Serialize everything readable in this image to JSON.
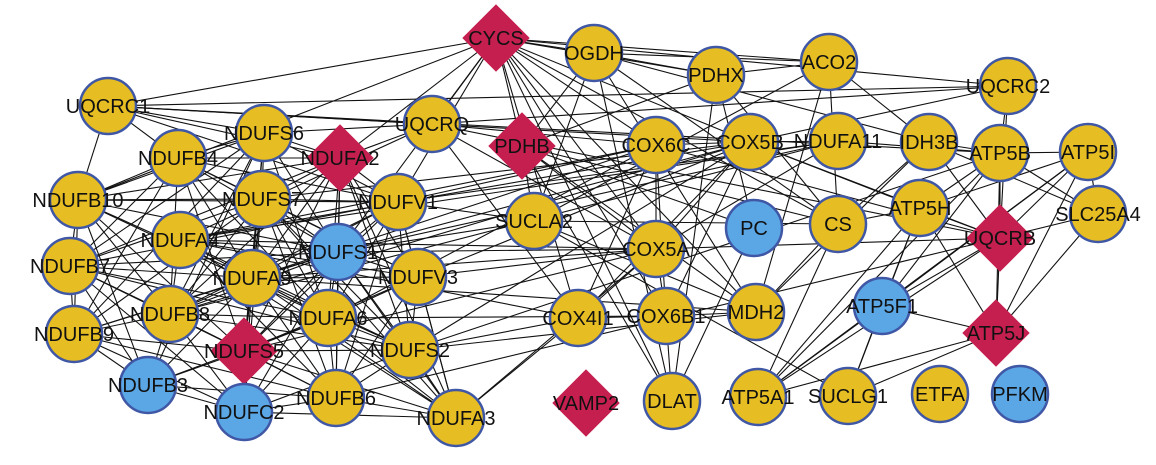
{
  "colors": {
    "gold": "#e6bd23",
    "blue": "#5ba6e5",
    "crimson": "#c51f50",
    "outline": "#3f57a5",
    "edge": "#111111"
  },
  "nodes": [
    {
      "id": "CYCS",
      "label": "CYCS",
      "shape": "diamond",
      "color": "crimson"
    },
    {
      "id": "OGDH",
      "label": "OGDH",
      "shape": "circle",
      "color": "gold"
    },
    {
      "id": "PDHX",
      "label": "PDHX",
      "shape": "circle",
      "color": "gold"
    },
    {
      "id": "ACO2",
      "label": "ACO2",
      "shape": "circle",
      "color": "gold"
    },
    {
      "id": "UQCRC2",
      "label": "UQCRC2",
      "shape": "circle",
      "color": "gold"
    },
    {
      "id": "UQCRC1",
      "label": "UQCRC1",
      "shape": "circle",
      "color": "gold"
    },
    {
      "id": "UQCRQ",
      "label": "UQCRQ",
      "shape": "circle",
      "color": "gold"
    },
    {
      "id": "NDUFS6",
      "label": "NDUFS6",
      "shape": "circle",
      "color": "gold"
    },
    {
      "id": "PDHB",
      "label": "PDHB",
      "shape": "diamond",
      "color": "crimson"
    },
    {
      "id": "COX6C",
      "label": "COX6C",
      "shape": "circle",
      "color": "gold"
    },
    {
      "id": "COX5B",
      "label": "COX5B",
      "shape": "circle",
      "color": "gold"
    },
    {
      "id": "NDUFA11",
      "label": "NDUFA11",
      "shape": "circle",
      "color": "gold"
    },
    {
      "id": "IDH3B",
      "label": "IDH3B",
      "shape": "circle",
      "color": "gold"
    },
    {
      "id": "ATP5B",
      "label": "ATP5B",
      "shape": "circle",
      "color": "gold"
    },
    {
      "id": "ATP5I",
      "label": "ATP5I",
      "shape": "circle",
      "color": "gold"
    },
    {
      "id": "NDUFB4",
      "label": "NDUFB4",
      "shape": "circle",
      "color": "gold"
    },
    {
      "id": "NDUFA2",
      "label": "NDUFA2",
      "shape": "diamond",
      "color": "crimson"
    },
    {
      "id": "NDUFB10",
      "label": "NDUFB10",
      "shape": "circle",
      "color": "gold"
    },
    {
      "id": "NDUFS7",
      "label": "NDUFS7",
      "shape": "circle",
      "color": "gold"
    },
    {
      "id": "NDUFV1",
      "label": "NDUFV1",
      "shape": "circle",
      "color": "gold"
    },
    {
      "id": "SUCLA2",
      "label": "SUCLA2",
      "shape": "circle",
      "color": "gold"
    },
    {
      "id": "PC",
      "label": "PC",
      "shape": "circle",
      "color": "blue"
    },
    {
      "id": "CS",
      "label": "CS",
      "shape": "circle",
      "color": "gold"
    },
    {
      "id": "ATP5H",
      "label": "ATP5H",
      "shape": "circle",
      "color": "gold"
    },
    {
      "id": "UQCRB",
      "label": "UQCRB",
      "shape": "diamond",
      "color": "crimson"
    },
    {
      "id": "SLC25A4",
      "label": "SLC25A4",
      "shape": "circle",
      "color": "gold"
    },
    {
      "id": "NDUFA4",
      "label": "NDUFA4",
      "shape": "circle",
      "color": "gold"
    },
    {
      "id": "NDUFS1",
      "label": "NDUFS1",
      "shape": "circle",
      "color": "blue"
    },
    {
      "id": "COX5A",
      "label": "COX5A",
      "shape": "circle",
      "color": "gold"
    },
    {
      "id": "NDUFB7",
      "label": "NDUFB7",
      "shape": "circle",
      "color": "gold"
    },
    {
      "id": "NDUFA9",
      "label": "NDUFA9",
      "shape": "circle",
      "color": "gold"
    },
    {
      "id": "NDUFV3",
      "label": "NDUFV3",
      "shape": "circle",
      "color": "gold"
    },
    {
      "id": "NDUFB8",
      "label": "NDUFB8",
      "shape": "circle",
      "color": "gold"
    },
    {
      "id": "NDUFA6",
      "label": "NDUFA6",
      "shape": "circle",
      "color": "gold"
    },
    {
      "id": "COX4I1",
      "label": "COX4I1",
      "shape": "circle",
      "color": "gold"
    },
    {
      "id": "COX6B1",
      "label": "COX6B1",
      "shape": "circle",
      "color": "gold"
    },
    {
      "id": "MDH2",
      "label": "MDH2",
      "shape": "circle",
      "color": "gold"
    },
    {
      "id": "ATP5F1",
      "label": "ATP5F1",
      "shape": "circle",
      "color": "blue"
    },
    {
      "id": "ATP5J",
      "label": "ATP5J",
      "shape": "diamond",
      "color": "crimson"
    },
    {
      "id": "NDUFB9",
      "label": "NDUFB9",
      "shape": "circle",
      "color": "gold"
    },
    {
      "id": "NDUFS5",
      "label": "NDUFS5",
      "shape": "diamond",
      "color": "crimson"
    },
    {
      "id": "NDUFS2",
      "label": "NDUFS2",
      "shape": "circle",
      "color": "gold"
    },
    {
      "id": "NDUFB3",
      "label": "NDUFB3",
      "shape": "circle",
      "color": "blue"
    },
    {
      "id": "NDUFB6",
      "label": "NDUFB6",
      "shape": "circle",
      "color": "gold"
    },
    {
      "id": "NDUFC2",
      "label": "NDUFC2",
      "shape": "circle",
      "color": "blue"
    },
    {
      "id": "NDUFA3",
      "label": "NDUFA3",
      "shape": "circle",
      "color": "gold"
    },
    {
      "id": "VAMP2",
      "label": "VAMP2",
      "shape": "diamond",
      "color": "crimson"
    },
    {
      "id": "DLAT",
      "label": "DLAT",
      "shape": "circle",
      "color": "gold"
    },
    {
      "id": "ATP5A1",
      "label": "ATP5A1",
      "shape": "circle",
      "color": "gold"
    },
    {
      "id": "SUCLG1",
      "label": "SUCLG1",
      "shape": "circle",
      "color": "gold"
    },
    {
      "id": "ETFA",
      "label": "ETFA",
      "shape": "circle",
      "color": "gold"
    },
    {
      "id": "PFKM",
      "label": "PFKM",
      "shape": "circle",
      "color": "blue"
    }
  ],
  "edges": [
    [
      "CYCS",
      "OGDH"
    ],
    [
      "CYCS",
      "PDHX"
    ],
    [
      "CYCS",
      "ACO2"
    ],
    [
      "CYCS",
      "UQCRC2"
    ],
    [
      "CYCS",
      "UQCRC1"
    ],
    [
      "CYCS",
      "UQCRQ"
    ],
    [
      "CYCS",
      "PDHB"
    ],
    [
      "CYCS",
      "COX6C"
    ],
    [
      "CYCS",
      "COX5B"
    ],
    [
      "CYCS",
      "COX5A"
    ],
    [
      "CYCS",
      "COX4I1"
    ],
    [
      "CYCS",
      "COX6B1"
    ],
    [
      "CYCS",
      "NDUFV1"
    ],
    [
      "CYCS",
      "NDUFA2"
    ],
    [
      "CYCS",
      "NDUFS1"
    ],
    [
      "CYCS",
      "CS"
    ],
    [
      "CYCS",
      "MDH2"
    ],
    [
      "CYCS",
      "DLAT"
    ],
    [
      "CYCS",
      "NDUFB10"
    ],
    [
      "OGDH",
      "PDHX"
    ],
    [
      "OGDH",
      "ACO2"
    ],
    [
      "OGDH",
      "PDHB"
    ],
    [
      "OGDH",
      "SUCLA2"
    ],
    [
      "OGDH",
      "IDH3B"
    ],
    [
      "OGDH",
      "CS"
    ],
    [
      "OGDH",
      "MDH2"
    ],
    [
      "OGDH",
      "DLAT"
    ],
    [
      "PDHX",
      "ACO2"
    ],
    [
      "PDHX",
      "PDHB"
    ],
    [
      "PDHX",
      "DLAT"
    ],
    [
      "PDHX",
      "CS"
    ],
    [
      "PDHX",
      "PC"
    ],
    [
      "ACO2",
      "IDH3B"
    ],
    [
      "ACO2",
      "CS"
    ],
    [
      "ACO2",
      "MDH2"
    ],
    [
      "ACO2",
      "SUCLA2"
    ],
    [
      "UQCRC2",
      "UQCRC1"
    ],
    [
      "UQCRC2",
      "UQCRQ"
    ],
    [
      "UQCRC2",
      "UQCRB"
    ],
    [
      "UQCRC2",
      "COX5B"
    ],
    [
      "UQCRC2",
      "ATP5B"
    ],
    [
      "UQCRC1",
      "UQCRQ"
    ],
    [
      "UQCRC1",
      "NDUFB4"
    ],
    [
      "UQCRC1",
      "NDUFS6"
    ],
    [
      "UQCRC1",
      "NDUFB10"
    ],
    [
      "UQCRC1",
      "NDUFA2"
    ],
    [
      "UQCRC1",
      "NDUFV1"
    ],
    [
      "UQCRC1",
      "COX5B"
    ],
    [
      "UQCRC1",
      "ATP5B"
    ],
    [
      "UQCRQ",
      "UQCRB"
    ],
    [
      "UQCRQ",
      "COX6C"
    ],
    [
      "UQCRQ",
      "COX5A"
    ],
    [
      "UQCRQ",
      "NDUFA2"
    ],
    [
      "UQCRQ",
      "NDUFS6"
    ],
    [
      "UQCRQ",
      "NDUFA4"
    ],
    [
      "UQCRQ",
      "COX4I1"
    ],
    [
      "PDHB",
      "DLAT"
    ],
    [
      "PDHB",
      "SUCLA2"
    ],
    [
      "PDHB",
      "CS"
    ],
    [
      "PDHB",
      "MDH2"
    ],
    [
      "PDHB",
      "PC"
    ],
    [
      "PDHB",
      "COX5A"
    ],
    [
      "COX6C",
      "COX5B"
    ],
    [
      "COX6C",
      "COX5A"
    ],
    [
      "COX6C",
      "COX4I1"
    ],
    [
      "COX6C",
      "COX6B1"
    ],
    [
      "COX6C",
      "NDUFA4"
    ],
    [
      "COX6C",
      "NDUFV1"
    ],
    [
      "COX6C",
      "UQCRB"
    ],
    [
      "COX6C",
      "NDUFA9"
    ],
    [
      "COX5B",
      "COX5A"
    ],
    [
      "COX5B",
      "COX4I1"
    ],
    [
      "COX5B",
      "COX6B1"
    ],
    [
      "COX5B",
      "NDUFA4"
    ],
    [
      "COX5B",
      "NDUFS1"
    ],
    [
      "COX5B",
      "NDUFV3"
    ],
    [
      "COX5B",
      "ATP5H"
    ],
    [
      "COX5B",
      "UQCRB"
    ],
    [
      "COX5B",
      "NDUFA11"
    ],
    [
      "COX5B",
      "NDUFS7"
    ],
    [
      "NDUFA11",
      "NDUFA4"
    ],
    [
      "NDUFA11",
      "NDUFS1"
    ],
    [
      "NDUFA11",
      "NDUFV1"
    ],
    [
      "NDUFA11",
      "NDUFB8"
    ],
    [
      "NDUFA11",
      "ATP5B"
    ],
    [
      "NDUFA11",
      "COX5A"
    ],
    [
      "IDH3B",
      "CS"
    ],
    [
      "IDH3B",
      "MDH2"
    ],
    [
      "IDH3B",
      "ATP5B"
    ],
    [
      "IDH3B",
      "SLC25A4"
    ],
    [
      "IDH3B",
      "UQCRB"
    ],
    [
      "ATP5B",
      "ATP5I"
    ],
    [
      "ATP5B",
      "ATP5H"
    ],
    [
      "ATP5B",
      "UQCRB"
    ],
    [
      "ATP5B",
      "ATP5J"
    ],
    [
      "ATP5B",
      "ATP5F1"
    ],
    [
      "ATP5B",
      "ATP5A1"
    ],
    [
      "ATP5B",
      "SLC25A4"
    ],
    [
      "ATP5I",
      "ATP5H"
    ],
    [
      "ATP5I",
      "UQCRB"
    ],
    [
      "ATP5I",
      "ATP5J"
    ],
    [
      "ATP5I",
      "ATP5F1"
    ],
    [
      "ATP5I",
      "SLC25A4"
    ],
    [
      "ATP5I",
      "ATP5A1"
    ],
    [
      "ATP5H",
      "UQCRB"
    ],
    [
      "ATP5H",
      "ATP5J"
    ],
    [
      "ATP5H",
      "ATP5F1"
    ],
    [
      "ATP5H",
      "ATP5A1"
    ],
    [
      "ATP5H",
      "SUCLG1"
    ],
    [
      "ATP5H",
      "CS"
    ],
    [
      "UQCRB",
      "ATP5J"
    ],
    [
      "UQCRB",
      "ATP5F1"
    ],
    [
      "UQCRB",
      "ATP5A1"
    ],
    [
      "UQCRB",
      "SLC25A4"
    ],
    [
      "UQCRB",
      "COX5A"
    ],
    [
      "ATP5J",
      "ATP5F1"
    ],
    [
      "ATP5J",
      "ATP5A1"
    ],
    [
      "ATP5J",
      "SLC25A4"
    ],
    [
      "ATP5J",
      "SUCLG1"
    ],
    [
      "ATP5F1",
      "ATP5A1"
    ],
    [
      "ATP5F1",
      "SUCLG1"
    ],
    [
      "CS",
      "MDH2"
    ],
    [
      "CS",
      "SUCLA2"
    ],
    [
      "CS",
      "ATP5A1"
    ],
    [
      "MDH2",
      "COX6B1"
    ],
    [
      "MDH2",
      "SUCLA2"
    ],
    [
      "MDH2",
      "NDUFS2"
    ],
    [
      "MDH2",
      "NDUFA9"
    ],
    [
      "COX5A",
      "COX4I1"
    ],
    [
      "COX5A",
      "COX6B1"
    ],
    [
      "COX5A",
      "NDUFA4"
    ],
    [
      "COX5A",
      "NDUFV3"
    ],
    [
      "COX5A",
      "NDUFS1"
    ],
    [
      "COX5A",
      "NDUFA9"
    ],
    [
      "COX4I1",
      "COX6B1"
    ],
    [
      "COX4I1",
      "NDUFA4"
    ],
    [
      "COX4I1",
      "NDUFA3"
    ],
    [
      "COX4I1",
      "NDUFS2"
    ],
    [
      "COX6B1",
      "NDUFA6"
    ],
    [
      "COX6B1",
      "DLAT"
    ],
    [
      "SUCLA2",
      "NDUFV1"
    ],
    [
      "SUCLA2",
      "NDUFS1"
    ],
    [
      "SUCLA2",
      "SUCLG1"
    ],
    [
      "PC",
      "DLAT"
    ],
    [
      "NDUFA4",
      "NDUFV3"
    ],
    [
      "NDUFA4",
      "NDUFS1"
    ],
    [
      "NDUFA4",
      "NDUFB8"
    ],
    [
      "NDUFA4",
      "NDUFS2"
    ],
    [
      "NDUFA4",
      "NDUFA6"
    ],
    [
      "NDUFA4",
      "NDUFB6"
    ],
    [
      "NDUFA4",
      "NDUFA3"
    ],
    [
      "NDUFS6",
      "NDUFB4"
    ],
    [
      "NDUFS6",
      "NDUFA2"
    ],
    [
      "NDUFS6",
      "NDUFB10"
    ],
    [
      "NDUFS6",
      "NDUFS7"
    ],
    [
      "NDUFS6",
      "NDUFV1"
    ],
    [
      "NDUFS6",
      "NDUFB7"
    ],
    [
      "NDUFS6",
      "NDUFS1"
    ],
    [
      "NDUFS6",
      "NDUFA9"
    ],
    [
      "NDUFS6",
      "NDUFB8"
    ],
    [
      "NDUFS6",
      "NDUFS5"
    ],
    [
      "NDUFS6",
      "NDUFB9"
    ],
    [
      "NDUFS6",
      "NDUFA6"
    ],
    [
      "NDUFS6",
      "NDUFB3"
    ],
    [
      "NDUFB4",
      "NDUFA2"
    ],
    [
      "NDUFB4",
      "NDUFB10"
    ],
    [
      "NDUFB4",
      "NDUFS7"
    ],
    [
      "NDUFB4",
      "NDUFV1"
    ],
    [
      "NDUFB4",
      "NDUFB7"
    ],
    [
      "NDUFB4",
      "NDUFS1"
    ],
    [
      "NDUFB4",
      "NDUFA9"
    ],
    [
      "NDUFB4",
      "NDUFB8"
    ],
    [
      "NDUFB4",
      "NDUFS5"
    ],
    [
      "NDUFB4",
      "NDUFB9"
    ],
    [
      "NDUFB4",
      "NDUFA6"
    ],
    [
      "NDUFB4",
      "NDUFV3"
    ],
    [
      "NDUFA2",
      "NDUFB10"
    ],
    [
      "NDUFA2",
      "NDUFS7"
    ],
    [
      "NDUFA2",
      "NDUFV1"
    ],
    [
      "NDUFA2",
      "NDUFS1"
    ],
    [
      "NDUFA2",
      "NDUFA9"
    ],
    [
      "NDUFA2",
      "NDUFB8"
    ],
    [
      "NDUFA2",
      "NDUFV3"
    ],
    [
      "NDUFA2",
      "NDUFA6"
    ],
    [
      "NDUFA2",
      "NDUFS2"
    ],
    [
      "NDUFA2",
      "NDUFB7"
    ],
    [
      "NDUFA2",
      "NDUFS5"
    ],
    [
      "NDUFA2",
      "NDUFA3"
    ],
    [
      "NDUFA2",
      "NDUFB6"
    ],
    [
      "NDUFB10",
      "NDUFS7"
    ],
    [
      "NDUFB10",
      "NDUFB7"
    ],
    [
      "NDUFB10",
      "NDUFA9"
    ],
    [
      "NDUFB10",
      "NDUFB8"
    ],
    [
      "NDUFB10",
      "NDUFB9"
    ],
    [
      "NDUFB10",
      "NDUFS5"
    ],
    [
      "NDUFB10",
      "NDUFS1"
    ],
    [
      "NDUFB10",
      "NDUFA6"
    ],
    [
      "NDUFB10",
      "NDUFB3"
    ],
    [
      "NDUFB10",
      "NDUFV1"
    ],
    [
      "NDUFS7",
      "NDUFV1"
    ],
    [
      "NDUFS7",
      "NDUFB7"
    ],
    [
      "NDUFS7",
      "NDUFS1"
    ],
    [
      "NDUFS7",
      "NDUFA9"
    ],
    [
      "NDUFS7",
      "NDUFB8"
    ],
    [
      "NDUFS7",
      "NDUFS5"
    ],
    [
      "NDUFS7",
      "NDUFB9"
    ],
    [
      "NDUFS7",
      "NDUFA6"
    ],
    [
      "NDUFS7",
      "NDUFV3"
    ],
    [
      "NDUFS7",
      "NDUFS2"
    ],
    [
      "NDUFS7",
      "NDUFB6"
    ],
    [
      "NDUFS7",
      "NDUFC2"
    ],
    [
      "NDUFS7",
      "NDUFA3"
    ],
    [
      "NDUFV1",
      "NDUFS1"
    ],
    [
      "NDUFV1",
      "NDUFA9"
    ],
    [
      "NDUFV1",
      "NDUFV3"
    ],
    [
      "NDUFV1",
      "NDUFA6"
    ],
    [
      "NDUFV1",
      "NDUFS2"
    ],
    [
      "NDUFV1",
      "NDUFB8"
    ],
    [
      "NDUFV1",
      "NDUFB7"
    ],
    [
      "NDUFV1",
      "NDUFS5"
    ],
    [
      "NDUFV1",
      "NDUFA3"
    ],
    [
      "NDUFV1",
      "NDUFB6"
    ],
    [
      "NDUFB7",
      "NDUFA9"
    ],
    [
      "NDUFB7",
      "NDUFB8"
    ],
    [
      "NDUFB7",
      "NDUFB9"
    ],
    [
      "NDUFB7",
      "NDUFS5"
    ],
    [
      "NDUFB7",
      "NDUFS1"
    ],
    [
      "NDUFB7",
      "NDUFA6"
    ],
    [
      "NDUFB7",
      "NDUFB3"
    ],
    [
      "NDUFB7",
      "NDUFC2"
    ],
    [
      "NDUFB7",
      "NDUFS2"
    ],
    [
      "NDUFA9",
      "NDUFS1"
    ],
    [
      "NDUFA9",
      "NDUFB8"
    ],
    [
      "NDUFA9",
      "NDUFB9"
    ],
    [
      "NDUFA9",
      "NDUFS5"
    ],
    [
      "NDUFA9",
      "NDUFA6"
    ],
    [
      "NDUFA9",
      "NDUFV3"
    ],
    [
      "NDUFA9",
      "NDUFS2"
    ],
    [
      "NDUFA9",
      "NDUFB3"
    ],
    [
      "NDUFA9",
      "NDUFC2"
    ],
    [
      "NDUFA9",
      "NDUFB6"
    ],
    [
      "NDUFA9",
      "NDUFA3"
    ],
    [
      "NDUFS1",
      "NDUFV3"
    ],
    [
      "NDUFS1",
      "NDUFA6"
    ],
    [
      "NDUFS1",
      "NDUFS2"
    ],
    [
      "NDUFS1",
      "NDUFB8"
    ],
    [
      "NDUFS1",
      "NDUFS5"
    ],
    [
      "NDUFS1",
      "NDUFB6"
    ],
    [
      "NDUFS1",
      "NDUFA3"
    ],
    [
      "NDUFS1",
      "NDUFC2"
    ],
    [
      "NDUFS1",
      "NDUFB9"
    ],
    [
      "NDUFV3",
      "NDUFA6"
    ],
    [
      "NDUFV3",
      "NDUFS2"
    ],
    [
      "NDUFV3",
      "NDUFS5"
    ],
    [
      "NDUFV3",
      "NDUFA3"
    ],
    [
      "NDUFV3",
      "NDUFB6"
    ],
    [
      "NDUFB8",
      "NDUFB9"
    ],
    [
      "NDUFB8",
      "NDUFS5"
    ],
    [
      "NDUFB8",
      "NDUFA6"
    ],
    [
      "NDUFB8",
      "NDUFB3"
    ],
    [
      "NDUFB8",
      "NDUFC2"
    ],
    [
      "NDUFB8",
      "NDUFB6"
    ],
    [
      "NDUFB8",
      "NDUFS2"
    ],
    [
      "NDUFA6",
      "NDUFS5"
    ],
    [
      "NDUFA6",
      "NDUFS2"
    ],
    [
      "NDUFA6",
      "NDUFB6"
    ],
    [
      "NDUFA6",
      "NDUFA3"
    ],
    [
      "NDUFA6",
      "NDUFC2"
    ],
    [
      "NDUFA6",
      "NDUFB3"
    ],
    [
      "NDUFB9",
      "NDUFS5"
    ],
    [
      "NDUFB9",
      "NDUFB3"
    ],
    [
      "NDUFB9",
      "NDUFC2"
    ],
    [
      "NDUFB9",
      "NDUFB6"
    ],
    [
      "NDUFS5",
      "NDUFS2"
    ],
    [
      "NDUFS5",
      "NDUFB3"
    ],
    [
      "NDUFS5",
      "NDUFC2"
    ],
    [
      "NDUFS5",
      "NDUFB6"
    ],
    [
      "NDUFS5",
      "NDUFA3"
    ],
    [
      "NDUFS2",
      "NDUFB6"
    ],
    [
      "NDUFS2",
      "NDUFA3"
    ],
    [
      "NDUFS2",
      "NDUFC2"
    ],
    [
      "NDUFB3",
      "NDUFC2"
    ],
    [
      "NDUFB3",
      "NDUFB6"
    ],
    [
      "NDUFB6",
      "NDUFC2"
    ],
    [
      "NDUFB6",
      "NDUFA3"
    ],
    [
      "NDUFC2",
      "NDUFA3"
    ],
    [
      "NDUFA3",
      "COX5A"
    ],
    [
      "NDUFS2",
      "COX5B"
    ],
    [
      "NDUFA6",
      "COX6C"
    ],
    [
      "NDUFB8",
      "COX5B"
    ],
    [
      "NDUFS5",
      "COX5A"
    ],
    [
      "NDUFB6",
      "UQCRB"
    ],
    [
      "NDUFS2",
      "ATP5B"
    ]
  ]
}
